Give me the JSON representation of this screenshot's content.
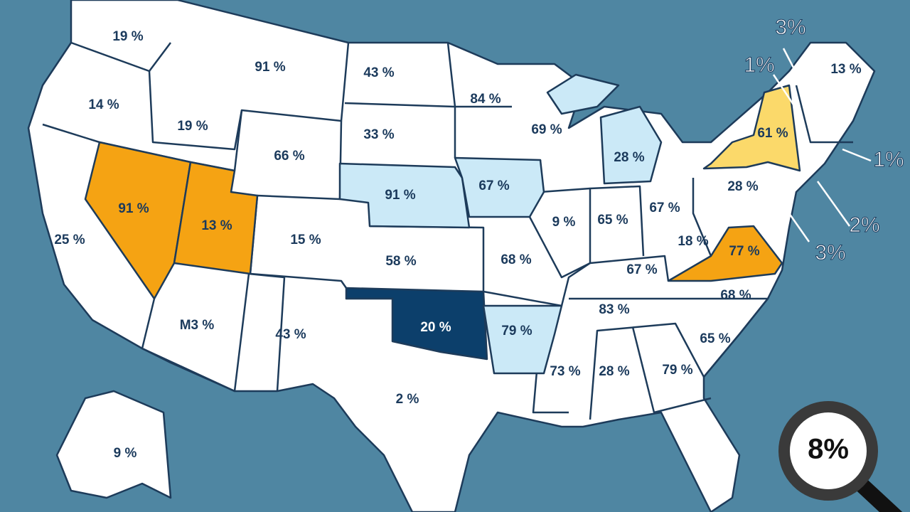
{
  "states": [
    {
      "label": "19 %"
    },
    {
      "label": "14 %"
    },
    {
      "label": "19 %"
    },
    {
      "label": "91 %"
    },
    {
      "label": "43 %"
    },
    {
      "label": "84 %"
    },
    {
      "label": "33 %"
    },
    {
      "label": "66 %"
    },
    {
      "label": "69 %"
    },
    {
      "label": "28 %"
    },
    {
      "label": "61 %"
    },
    {
      "label": "13 %"
    },
    {
      "label": "91 %"
    },
    {
      "label": "13 %"
    },
    {
      "label": "25 %"
    },
    {
      "label": "15 %"
    },
    {
      "label": "91 %"
    },
    {
      "label": "67 %"
    },
    {
      "label": "9 %"
    },
    {
      "label": "65 %"
    },
    {
      "label": "67 %"
    },
    {
      "label": "28 %"
    },
    {
      "label": "58 %"
    },
    {
      "label": "68 %"
    },
    {
      "label": "18 %"
    },
    {
      "label": "77 %"
    },
    {
      "label": "67 %"
    },
    {
      "label": "68 %"
    },
    {
      "label": "83 %"
    },
    {
      "label": "20 %"
    },
    {
      "label": "79 %"
    },
    {
      "label": "65 %"
    },
    {
      "label": "M3 %"
    },
    {
      "label": "43 %"
    },
    {
      "label": "73 %"
    },
    {
      "label": "28 %"
    },
    {
      "label": "79 %"
    },
    {
      "label": "2 %"
    },
    {
      "label": "9 %"
    }
  ],
  "callouts": [
    {
      "label": "3%"
    },
    {
      "label": "1%"
    },
    {
      "label": "1%"
    },
    {
      "label": "2%"
    },
    {
      "label": "3%"
    }
  ],
  "magnifier": {
    "label": "8%"
  }
}
